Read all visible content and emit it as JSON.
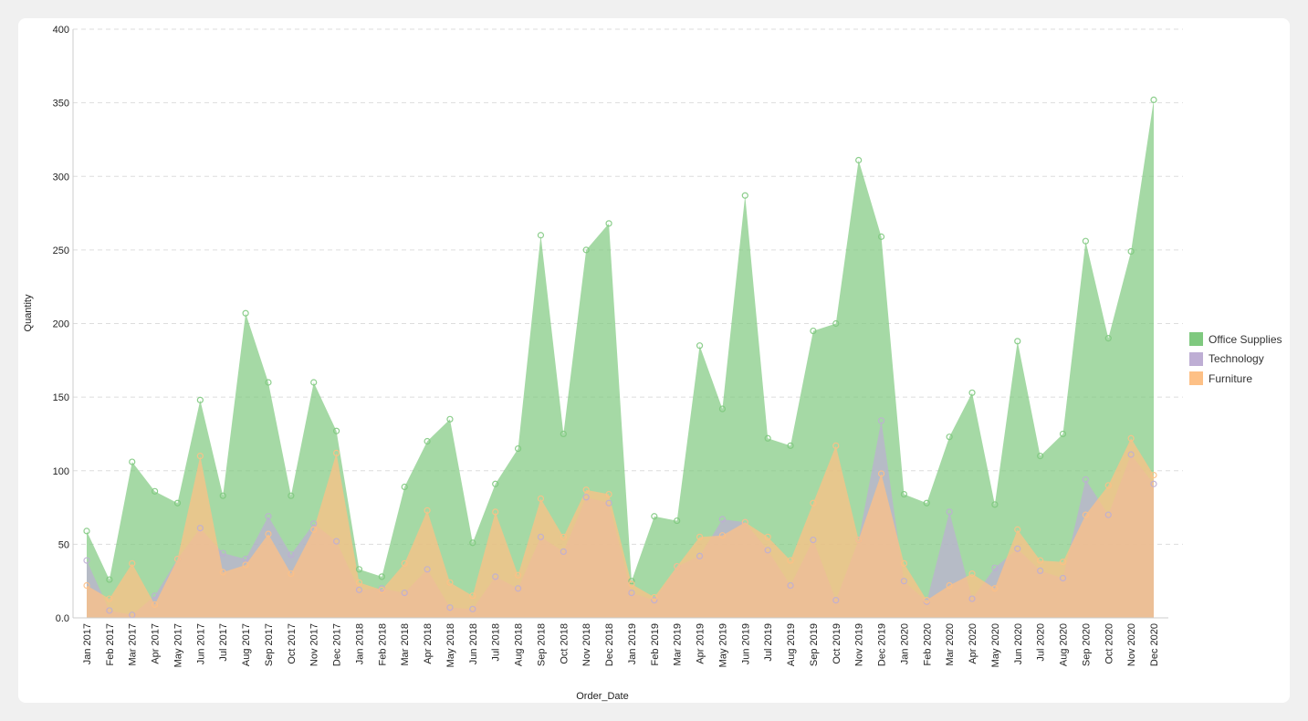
{
  "chart_data": {
    "type": "area",
    "title": "",
    "xlabel": "Order_Date",
    "ylabel": "Quantity",
    "ylim": [
      0,
      400
    ],
    "yticks": [
      "0.0",
      "50",
      "100",
      "150",
      "200",
      "250",
      "300",
      "350",
      "400"
    ],
    "categories": [
      "Jan 2017",
      "Feb 2017",
      "Mar 2017",
      "Apr 2017",
      "May 2017",
      "Jun 2017",
      "Jul 2017",
      "Aug 2017",
      "Sep 2017",
      "Oct 2017",
      "Nov 2017",
      "Dec 2017",
      "Jan 2018",
      "Feb 2018",
      "Mar 2018",
      "Apr 2018",
      "May 2018",
      "Jun 2018",
      "Jul 2018",
      "Aug 2018",
      "Sep 2018",
      "Oct 2018",
      "Nov 2018",
      "Dec 2018",
      "Jan 2019",
      "Feb 2019",
      "Mar 2019",
      "Apr 2019",
      "May 2019",
      "Jun 2019",
      "Jul 2019",
      "Aug 2019",
      "Sep 2019",
      "Oct 2019",
      "Nov 2019",
      "Dec 2019",
      "Jan 2020",
      "Feb 2020",
      "Mar 2020",
      "Apr 2020",
      "May 2020",
      "Jun 2020",
      "Jul 2020",
      "Aug 2020",
      "Sep 2020",
      "Oct 2020",
      "Nov 2020",
      "Dec 2020"
    ],
    "legend_position": "right",
    "series": [
      {
        "name": "Office Supplies",
        "color": "#7fc97f",
        "values": [
          59,
          26,
          106,
          86,
          78,
          148,
          83,
          207,
          160,
          83,
          160,
          127,
          33,
          28,
          89,
          120,
          135,
          51,
          91,
          115,
          260,
          125,
          250,
          268,
          25,
          69,
          66,
          185,
          142,
          287,
          122,
          117,
          195,
          200,
          311,
          259,
          84,
          78,
          123,
          153,
          77,
          188,
          110,
          125,
          256,
          190,
          249,
          352
        ]
      },
      {
        "name": "Technology",
        "color": "#beaed4",
        "values": [
          39,
          5,
          2,
          15,
          40,
          61,
          44,
          40,
          69,
          43,
          64,
          52,
          19,
          20,
          17,
          33,
          7,
          6,
          28,
          20,
          55,
          45,
          82,
          78,
          17,
          12,
          35,
          42,
          67,
          65,
          46,
          22,
          53,
          12,
          53,
          134,
          25,
          11,
          72,
          13,
          34,
          47,
          32,
          27,
          94,
          70,
          111,
          91
        ]
      },
      {
        "name": "Furniture",
        "color": "#fdc086",
        "values": [
          22,
          13,
          37,
          9,
          40,
          110,
          31,
          36,
          57,
          30,
          60,
          112,
          24,
          19,
          37,
          73,
          24,
          15,
          72,
          29,
          81,
          55,
          87,
          84,
          23,
          14,
          35,
          55,
          56,
          65,
          55,
          39,
          78,
          117,
          53,
          98,
          37,
          12,
          22,
          30,
          20,
          60,
          39,
          38,
          70,
          90,
          122,
          97
        ]
      }
    ]
  }
}
